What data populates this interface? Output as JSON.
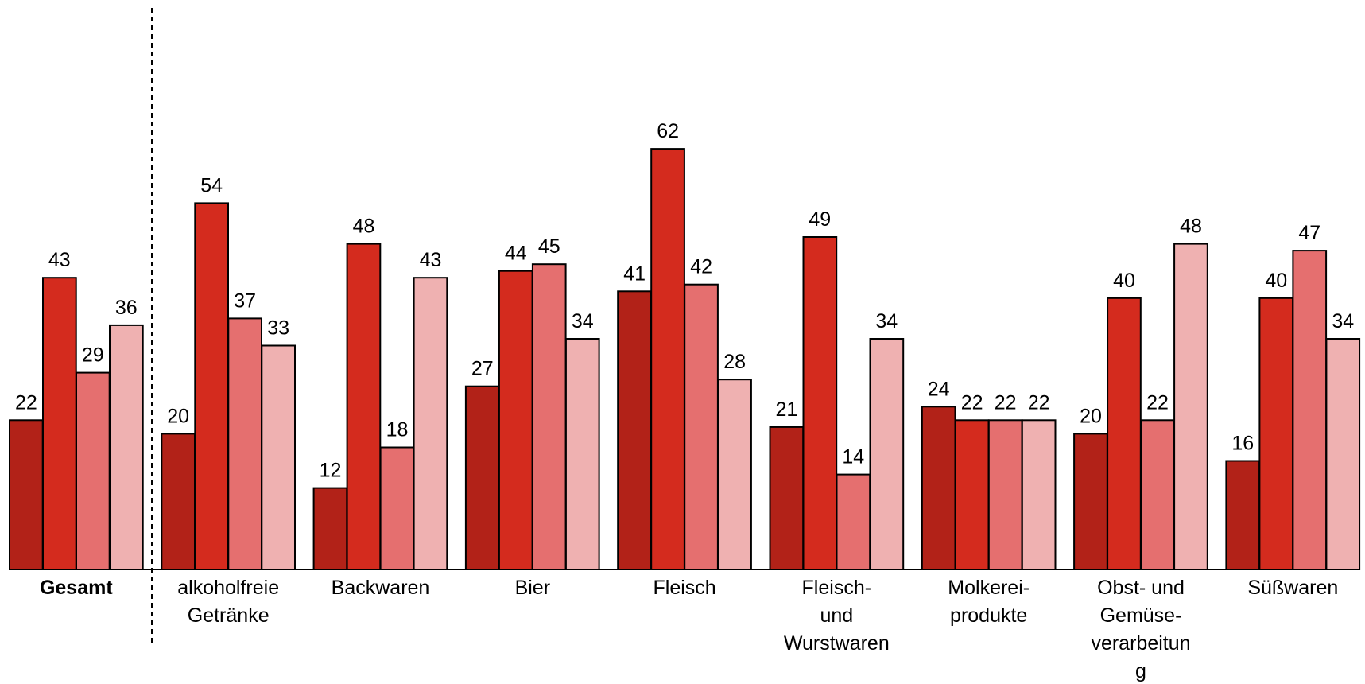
{
  "chart_data": {
    "type": "bar",
    "title": "",
    "xlabel": "",
    "ylabel": "",
    "ylim": [
      0,
      70
    ],
    "grid": false,
    "legend": "none",
    "colors": [
      "#b22218",
      "#d42b1e",
      "#e56f6f",
      "#efb1b1"
    ],
    "categories": [
      [
        "Gesamt"
      ],
      [
        "alkoholfreie",
        "Getränke"
      ],
      [
        "Backwaren"
      ],
      [
        "Bier"
      ],
      [
        "Fleisch"
      ],
      [
        "Fleisch-",
        "und",
        "Wurstwaren"
      ],
      [
        "Molkerei-",
        "produkte"
      ],
      [
        "Obst- und",
        "Gemüse-",
        "verarbeitun",
        "g"
      ],
      [
        "Süßwaren"
      ]
    ],
    "category_labels": [
      "Gesamt",
      "alkoholfreie Getränke",
      "Backwaren",
      "Bier",
      "Fleisch",
      "Fleisch- und Wurstwaren",
      "Molkerei- produkte",
      "Obst- und Gemüse- verarbeitun g",
      "Süßwaren"
    ],
    "bold_categories": [
      "Gesamt"
    ],
    "separator_after": "Gesamt",
    "series": [
      {
        "values": [
          22,
          20,
          12,
          27,
          41,
          21,
          24,
          20,
          16
        ]
      },
      {
        "values": [
          43,
          54,
          48,
          44,
          62,
          49,
          22,
          40,
          40
        ]
      },
      {
        "values": [
          29,
          37,
          18,
          45,
          42,
          14,
          22,
          22,
          47
        ]
      },
      {
        "values": [
          36,
          33,
          43,
          34,
          28,
          34,
          22,
          48,
          34
        ]
      }
    ]
  }
}
